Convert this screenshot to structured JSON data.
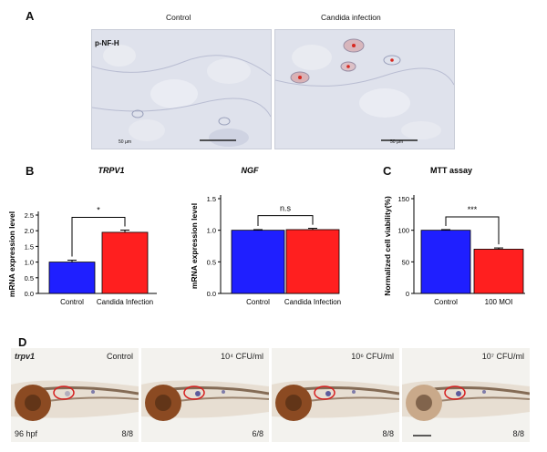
{
  "panelA": {
    "letter": "A",
    "col1": "Control",
    "col2": "Candida infection",
    "stain": "p-NF-H",
    "scale1": "50 µm",
    "scale2": "50 µm"
  },
  "panelB": {
    "letter": "B"
  },
  "panelC": {
    "letter": "C"
  },
  "panelD": {
    "letter": "D",
    "gene": "trpv1",
    "stage": "96 hpf",
    "images": [
      {
        "label": "Control",
        "count": "8/8"
      },
      {
        "label": "10⁴ CFU/ml",
        "count": "6/8"
      },
      {
        "label": "10⁶ CFU/ml",
        "count": "8/8"
      },
      {
        "label": "10⁷ CFU/ml",
        "count": "8/8"
      }
    ]
  },
  "chart_data": [
    {
      "type": "bar",
      "title": "TRPV1",
      "ylabel": "mRNA expression level",
      "categories": [
        "Control",
        "Candida Infection"
      ],
      "values": [
        1.0,
        1.95
      ],
      "errors": [
        0.06,
        0.07
      ],
      "ylim": [
        0,
        2.5
      ],
      "yticks": [
        "0.0",
        "0.5",
        "1.0",
        "1.5",
        "2.0",
        "2.5"
      ],
      "significance": "*",
      "colors": [
        "#1f1fff",
        "#ff1f1f"
      ]
    },
    {
      "type": "bar",
      "title": "NGF",
      "ylabel": "mRNA expression level",
      "categories": [
        "Control",
        "Candida Infection"
      ],
      "values": [
        1.0,
        1.01
      ],
      "errors": [
        0.01,
        0.02
      ],
      "ylim": [
        0,
        1.5
      ],
      "yticks": [
        "0.0",
        "0.5",
        "1.0",
        "1.5"
      ],
      "significance": "n.s",
      "colors": [
        "#1f1fff",
        "#ff1f1f"
      ]
    },
    {
      "type": "bar",
      "title": "MTT assay",
      "ylabel": "Normalized cell viability(%)",
      "categories": [
        "Control",
        "100 MOI"
      ],
      "values": [
        100,
        70
      ],
      "errors": [
        1,
        2
      ],
      "ylim": [
        0,
        150
      ],
      "yticks": [
        "0",
        "50",
        "100",
        "150"
      ],
      "significance": "***",
      "colors": [
        "#1f1fff",
        "#ff1f1f"
      ]
    }
  ]
}
